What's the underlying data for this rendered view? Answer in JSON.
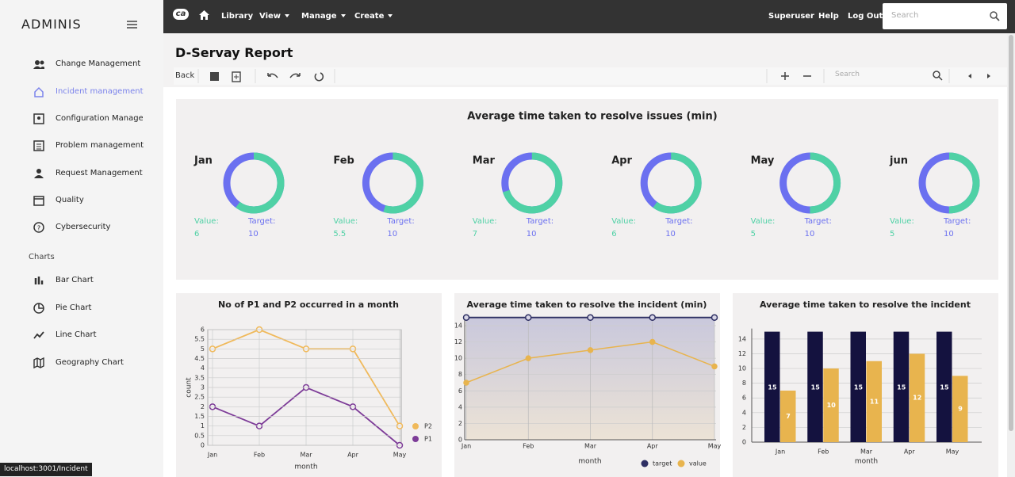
{
  "sidebar": {
    "brand": "ADMINIS",
    "items": [
      "Change Management",
      "Incident management",
      "Configuration Manageme",
      "Problem management",
      "Request Management",
      "Quality",
      "Cybersecurity"
    ],
    "section": "Charts",
    "chart_items": [
      "Bar Chart",
      "Pie Chart",
      "Line Chart",
      "Geography Chart"
    ]
  },
  "topbar": {
    "logo": "ca",
    "menu": [
      "Library",
      "View",
      "Manage",
      "Create"
    ],
    "right": [
      "Superuser",
      "Help",
      "Log Out"
    ],
    "search": "Search"
  },
  "report": {
    "title": "D-Servay Report",
    "back": "Back",
    "search": "Search"
  },
  "status": "localhost:3001/Incident",
  "chart_data": [
    {
      "type": "donut",
      "title": "Average time taken to resolve issues (min)",
      "categories": [
        "Jan",
        "Feb",
        "Mar",
        "Apr",
        "May",
        "jun"
      ],
      "series": [
        {
          "name": "Value:",
          "color": "#4fd1a5",
          "values": [
            6,
            5.5,
            7,
            6,
            5,
            5
          ]
        },
        {
          "name": "Target:",
          "color": "#6b70f0",
          "values": [
            10,
            10,
            10,
            10,
            10,
            10
          ]
        }
      ]
    },
    {
      "type": "line",
      "title": "No of P1 and P2 occurred in a month",
      "categories": [
        "Jan",
        "Feb",
        "Mar",
        "Apr",
        "May"
      ],
      "series": [
        {
          "name": "P2",
          "color": "#f0b95a",
          "values": [
            5,
            6,
            5,
            5,
            1
          ]
        },
        {
          "name": "P1",
          "color": "#7d3c98",
          "values": [
            2,
            1,
            3,
            2,
            0
          ]
        }
      ],
      "ylim": [
        0,
        6
      ],
      "yticks": [
        0,
        0.5,
        1,
        1.5,
        2,
        2.5,
        3,
        3.5,
        4,
        4.5,
        5,
        5.5,
        6
      ],
      "xlabel": "month",
      "ylabel": "count",
      "grid": true,
      "legend": "bottom-right"
    },
    {
      "type": "area",
      "title": "Average time taken to resolve the incident (min)",
      "categories": [
        "Jan",
        "Feb",
        "Mar",
        "Apr",
        "May"
      ],
      "series": [
        {
          "name": "target",
          "color": "#2e2f63",
          "values": [
            15,
            15,
            15,
            15,
            15
          ]
        },
        {
          "name": "value",
          "color": "#e8b44e",
          "values": [
            7,
            10,
            11,
            12,
            9
          ]
        }
      ],
      "ylim": [
        0,
        15
      ],
      "yticks": [
        0,
        2,
        4,
        6,
        8,
        10,
        12,
        14
      ],
      "xlabel": "month",
      "grid": true,
      "legend": "bottom"
    },
    {
      "type": "bar",
      "title": "Average time taken to resolve the incident",
      "categories": [
        "Jan",
        "Feb",
        "Mar",
        "Apr",
        "May"
      ],
      "series": [
        {
          "color": "#14123f",
          "values": [
            15,
            15,
            15,
            15,
            15
          ]
        },
        {
          "color": "#e8b44e",
          "values": [
            7,
            10,
            11,
            12,
            9
          ]
        }
      ],
      "ylim": [
        0,
        15
      ],
      "yticks": [
        0,
        2,
        4,
        6,
        8,
        10,
        12,
        14
      ],
      "xlabel": "month",
      "grid": true
    }
  ]
}
